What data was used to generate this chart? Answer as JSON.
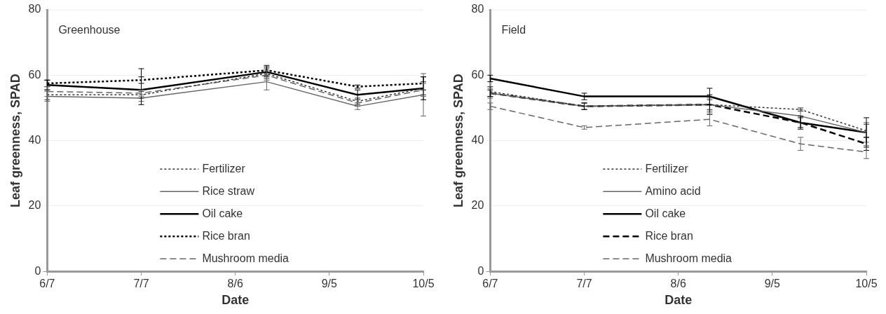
{
  "chart_data": [
    {
      "type": "line",
      "title": "Greenhouse",
      "xlabel": "Date",
      "ylabel": "Leaf greenness, SPAD",
      "x": [
        "--06-07",
        "--07-07",
        "--08-16",
        "--09-14",
        "--10-05"
      ],
      "xlim": [
        "--06-07",
        "--10-05"
      ],
      "xticks": [
        {
          "value": "--06-07",
          "label": "6/7"
        },
        {
          "value": "--07-07",
          "label": "7/7"
        },
        {
          "value": "--08-06",
          "label": "8/6"
        },
        {
          "value": "--09-05",
          "label": "9/5"
        },
        {
          "value": "--10-05",
          "label": "10/5"
        }
      ],
      "ylim": [
        0,
        80
      ],
      "yticks": [
        0,
        20,
        40,
        60,
        80
      ],
      "grid": "y",
      "legend": "bottom",
      "marker": "none",
      "series": [
        {
          "name": "Fertilizer",
          "color": "#333333",
          "line_style": "dotted",
          "values": [
            54,
            54,
            60.5,
            52,
            56
          ],
          "errors": [
            1.5,
            1,
            1.5,
            1,
            2
          ]
        },
        {
          "name": "Rice straw",
          "color": "#666666",
          "line_style": "solid",
          "values": [
            53.5,
            53,
            58,
            50.5,
            54
          ],
          "errors": [
            1.5,
            1,
            2.5,
            1,
            6.5
          ]
        },
        {
          "name": "Oil cake",
          "color": "#000000",
          "line_style": "solid",
          "values": [
            57,
            55.5,
            61,
            54,
            56
          ],
          "errors": [
            1.5,
            [
              51,
              62
            ],
            1.5,
            1.5,
            3.5
          ]
        },
        {
          "name": "Rice bran",
          "color": "#000000",
          "line_style": "dotted",
          "values": [
            57.5,
            58.5,
            61.5,
            56.5,
            57.5
          ],
          "errors": [
            1,
            1,
            1.5,
            0.5,
            2
          ]
        },
        {
          "name": "Mushroom media",
          "color": "#666666",
          "line_style": "dashed",
          "values": [
            55,
            54.5,
            60,
            51.5,
            55.5
          ],
          "errors": [
            1.5,
            1,
            1.5,
            1,
            2
          ]
        }
      ]
    },
    {
      "type": "line",
      "title": "Field",
      "xlabel": "Date",
      "ylabel": "Leaf greenness, SPAD",
      "x": [
        "--06-07",
        "--07-07",
        "--08-16",
        "--09-14",
        "--10-05"
      ],
      "xlim": [
        "--06-07",
        "--10-05"
      ],
      "xticks": [
        {
          "value": "--06-07",
          "label": "6/7"
        },
        {
          "value": "--07-07",
          "label": "7/7"
        },
        {
          "value": "--08-06",
          "label": "8/6"
        },
        {
          "value": "--09-05",
          "label": "9/5"
        },
        {
          "value": "--10-05",
          "label": "10/5"
        }
      ],
      "ylim": [
        0,
        80
      ],
      "yticks": [
        0,
        20,
        40,
        60,
        80
      ],
      "grid": "y",
      "legend": "bottom",
      "marker": "none",
      "series": [
        {
          "name": "Fertilizer",
          "color": "#333333",
          "line_style": "dotted",
          "values": [
            55,
            50.5,
            51,
            49.5,
            43
          ],
          "errors": [
            1.5,
            1,
            1.5,
            0.5,
            2
          ]
        },
        {
          "name": "Amino acid",
          "color": "#666666",
          "line_style": "solid",
          "values": [
            54.5,
            50.5,
            51,
            47.5,
            42.5
          ],
          "errors": [
            1.5,
            1,
            2,
            2,
            3
          ]
        },
        {
          "name": "Oil cake",
          "color": "#000000",
          "line_style": "solid",
          "values": [
            59,
            53.5,
            53.5,
            45.5,
            42.5
          ],
          "errors": [
            1,
            1,
            2.5,
            1.5,
            4.5
          ]
        },
        {
          "name": "Rice bran",
          "color": "#000000",
          "line_style": "dashed",
          "values": [
            54.5,
            50.5,
            51,
            45.5,
            39
          ],
          "errors": [
            1,
            1,
            3,
            2,
            2
          ]
        },
        {
          "name": "Mushroom media",
          "color": "#666666",
          "line_style": "dashed",
          "values": [
            50.5,
            44,
            46.5,
            39,
            36.5
          ],
          "errors": [
            1,
            0.5,
            2,
            2,
            2
          ]
        }
      ]
    }
  ]
}
